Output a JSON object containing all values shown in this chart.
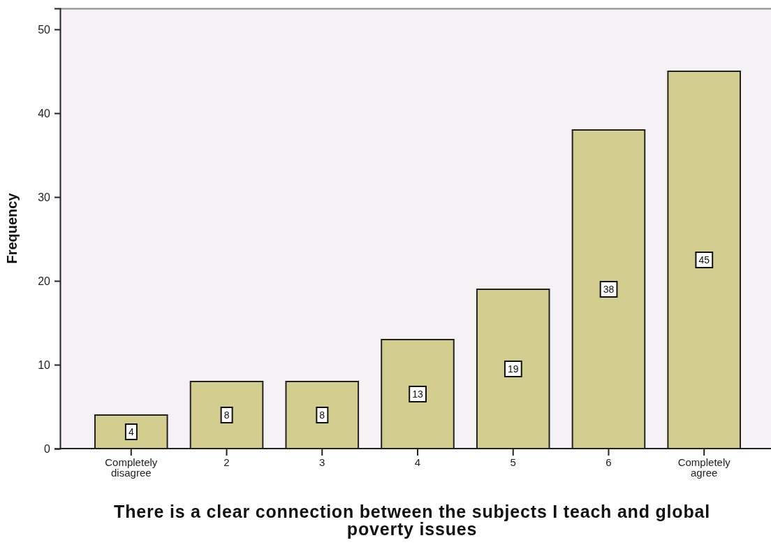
{
  "chart_data": {
    "type": "bar",
    "xlabel": "There is a clear connection between the subjects I teach and global poverty issues",
    "ylabel": "Frequency",
    "categories": [
      "Completely disagree",
      "2",
      "3",
      "4",
      "5",
      "6",
      "Completely agree"
    ],
    "values": [
      4,
      8,
      8,
      13,
      19,
      38,
      45
    ],
    "color": "#d3cd8f",
    "ylim": [
      0,
      52.5
    ],
    "yticks": [
      0,
      10,
      20,
      30,
      40,
      50
    ],
    "data_labels": true
  }
}
